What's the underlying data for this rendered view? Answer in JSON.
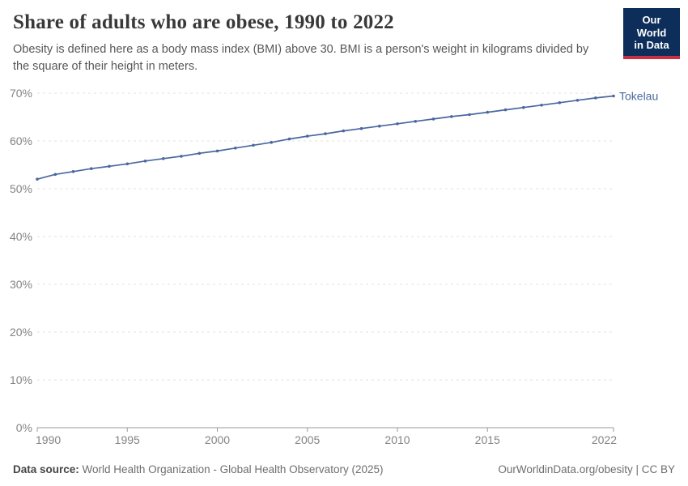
{
  "header": {
    "title": "Share of adults who are obese, 1990 to 2022",
    "subtitle": "Obesity is defined here as a body mass index (BMI) above 30. BMI is a person's weight in kilograms divided by the square of their height in meters.",
    "logo_line1": "Our World",
    "logo_line2": "in Data"
  },
  "chart_data": {
    "type": "line",
    "title": "Share of adults who are obese, 1990 to 2022",
    "xlabel": "",
    "ylabel": "",
    "unit": "%",
    "x": [
      1990,
      1991,
      1992,
      1993,
      1994,
      1995,
      1996,
      1997,
      1998,
      1999,
      2000,
      2001,
      2002,
      2003,
      2004,
      2005,
      2006,
      2007,
      2008,
      2009,
      2010,
      2011,
      2012,
      2013,
      2014,
      2015,
      2016,
      2017,
      2018,
      2019,
      2020,
      2021,
      2022
    ],
    "series": [
      {
        "name": "Tokelau",
        "color": "#4a679f",
        "values": [
          52.0,
          53.0,
          53.6,
          54.2,
          54.7,
          55.2,
          55.8,
          56.3,
          56.8,
          57.4,
          57.9,
          58.5,
          59.1,
          59.7,
          60.4,
          61.0,
          61.5,
          62.1,
          62.6,
          63.1,
          63.6,
          64.1,
          64.6,
          65.1,
          65.5,
          66.0,
          66.5,
          67.0,
          67.5,
          68.0,
          68.5,
          69.0,
          69.4
        ]
      }
    ],
    "ylim": [
      0,
      70
    ],
    "yticks": [
      0,
      10,
      20,
      30,
      40,
      50,
      60,
      70
    ],
    "xticks": [
      1990,
      1995,
      2000,
      2005,
      2010,
      2015,
      2022
    ],
    "grid": "horizontal-dashed",
    "legend_position": "line-end-label",
    "marker": "dot-every-year"
  },
  "footer": {
    "source_label": "Data source:",
    "source_text": "World Health Organization - Global Health Observatory (2025)",
    "right_text": "OurWorldinData.org/obesity | CC BY"
  },
  "colors": {
    "line": "#4a679f",
    "grid": "#e2e2e2",
    "axis": "#9a9a9a",
    "tick_text": "#848484",
    "logo_bg": "#0d2e5a",
    "logo_red": "#cc2e43"
  }
}
